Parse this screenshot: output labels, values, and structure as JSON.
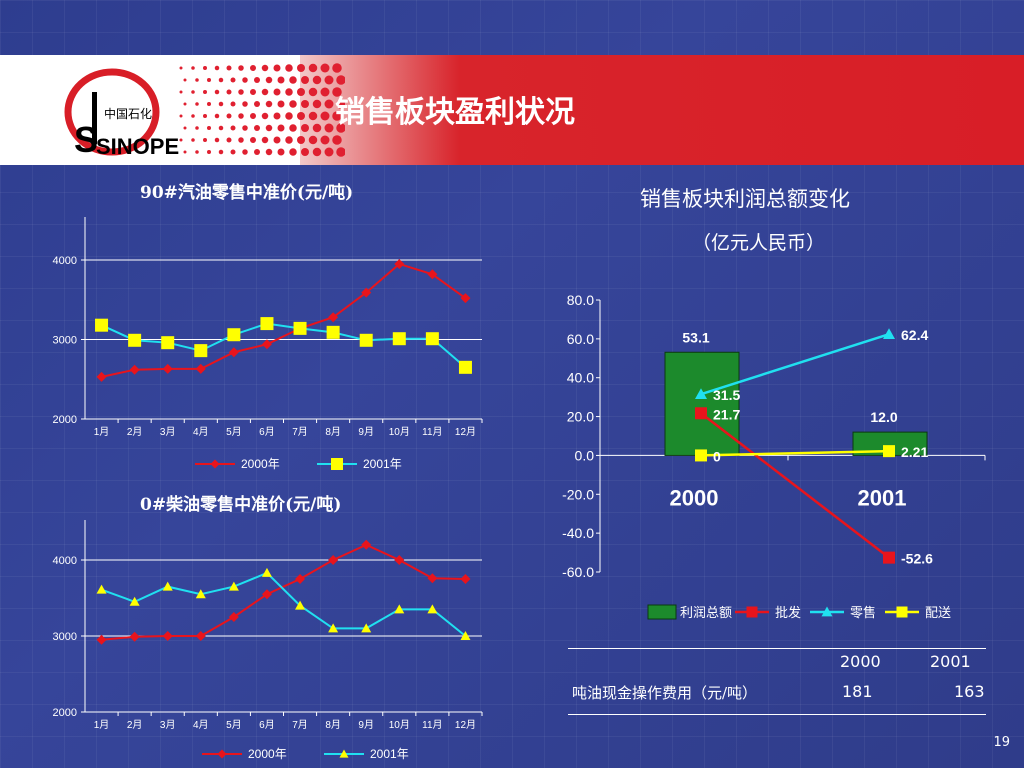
{
  "slide": {
    "title": "销售板块盈利状况",
    "page_number": "19",
    "logo_text": "SINOPEC",
    "logo_cn": "中国石化"
  },
  "colors": {
    "red": "#e8141c",
    "cyan": "#20e0f0",
    "yellow": "#ffff00",
    "green": "#1c8a2c"
  },
  "chart_data": [
    {
      "type": "line",
      "title": "90#汽油零售中准价(元/吨)",
      "categories": [
        "1月",
        "2月",
        "3月",
        "4月",
        "5月",
        "6月",
        "7月",
        "8月",
        "9月",
        "10月",
        "11月",
        "12月"
      ],
      "ylim": [
        2000,
        4000
      ],
      "yticks": [
        "4000",
        "3000",
        "2000"
      ],
      "series": [
        {
          "name": "2000年",
          "marker": "diamond",
          "color": "#e8141c",
          "values": [
            2530,
            2620,
            2630,
            2630,
            2840,
            2940,
            3140,
            3280,
            3590,
            3950,
            3820,
            3520
          ]
        },
        {
          "name": "2001年",
          "marker": "square",
          "color": "#20e0f0",
          "values": [
            3180,
            2990,
            2960,
            2860,
            3060,
            3200,
            3140,
            3090,
            2990,
            3010,
            3010,
            2650
          ]
        }
      ]
    },
    {
      "type": "line",
      "title": "0#柴油零售中准价(元/吨)",
      "categories": [
        "1月",
        "2月",
        "3月",
        "4月",
        "5月",
        "6月",
        "7月",
        "8月",
        "9月",
        "10月",
        "11月",
        "12月"
      ],
      "ylim": [
        2000,
        4500
      ],
      "yticks": [
        "4000",
        "3000",
        "2000"
      ],
      "series": [
        {
          "name": "2000年",
          "marker": "diamond",
          "color": "#e8141c",
          "values": [
            2950,
            2990,
            3000,
            3000,
            3250,
            3550,
            3750,
            4000,
            4200,
            4000,
            3760,
            3750
          ]
        },
        {
          "name": "2001年",
          "marker": "triangle",
          "color": "#20e0f0",
          "values": [
            3610,
            3450,
            3650,
            3550,
            3650,
            3830,
            3400,
            3100,
            3100,
            3350,
            3350,
            3000
          ]
        }
      ]
    },
    {
      "type": "bar",
      "title": "销售板块利润总额变化",
      "subtitle": "（亿元人民币）",
      "categories": [
        "2000",
        "2001"
      ],
      "ylim": [
        -60,
        80
      ],
      "yticks": [
        "80.0",
        "60.0",
        "40.0",
        "20.0",
        "0.0",
        "-20.0",
        "-40.0",
        "-60.0"
      ],
      "bars": {
        "name": "利润总额",
        "values": [
          53.1,
          12.0
        ],
        "labels": [
          "53.1",
          "12.0"
        ]
      },
      "series": [
        {
          "name": "批发",
          "marker": "square",
          "color": "#e8141c",
          "values": [
            21.7,
            -52.6
          ],
          "labels": [
            "21.7",
            "-52.6"
          ]
        },
        {
          "name": "零售",
          "marker": "triangle",
          "color": "#20e0f0",
          "values": [
            31.5,
            62.4
          ],
          "labels": [
            "31.5",
            "62.4"
          ]
        },
        {
          "name": "配送",
          "marker": "square",
          "color": "#ffff00",
          "values": [
            0,
            2.21
          ],
          "labels": [
            "0",
            "2.21"
          ]
        }
      ]
    }
  ],
  "table": {
    "headers": [
      "2000",
      "2001"
    ],
    "row_label": "吨油现金操作费用（元/吨）",
    "values": [
      "181",
      "163"
    ]
  }
}
